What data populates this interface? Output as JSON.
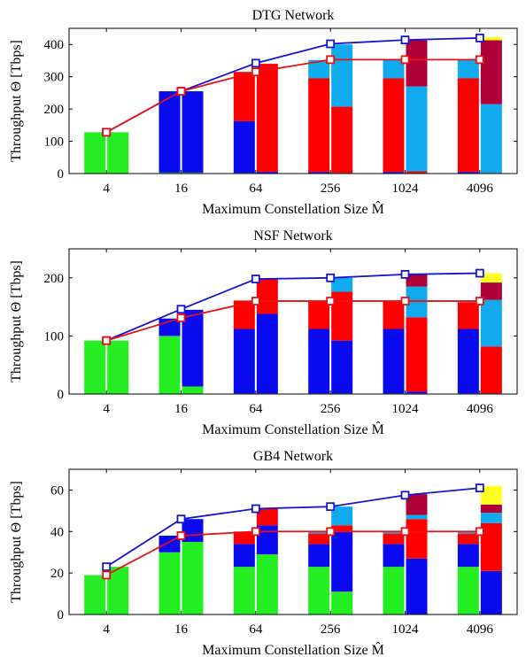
{
  "colors": {
    "green": "#22ee22",
    "blue": "#0a0aee",
    "red": "#ff0000",
    "cyan": "#10aaee",
    "maroon": "#b0003a",
    "yellow": "#ffff22",
    "line_blue": "#1414d4",
    "line_red": "#e81010"
  },
  "chart_data": [
    {
      "type": "bar",
      "title": "DTG Network",
      "xlabel": "Maximum Constellation Size M̂",
      "ylabel": "Throughput Θ [Tbps]",
      "categories": [
        "4",
        "16",
        "64",
        "256",
        "1024",
        "4096"
      ],
      "ylim": [
        0,
        450
      ],
      "yticks": [
        0,
        100,
        200,
        300,
        400
      ],
      "stack_order": [
        "green",
        "blue",
        "red",
        "cyan",
        "maroon",
        "yellow"
      ],
      "bars": [
        {
          "category": "4",
          "side": "left",
          "segments": [
            128,
            0,
            0,
            0,
            0,
            0
          ]
        },
        {
          "category": "4",
          "side": "right",
          "segments": [
            128,
            0,
            0,
            0,
            0,
            0
          ]
        },
        {
          "category": "16",
          "side": "left",
          "segments": [
            3,
            252,
            0,
            0,
            0,
            0
          ]
        },
        {
          "category": "16",
          "side": "right",
          "segments": [
            3,
            252,
            0,
            0,
            0,
            0
          ]
        },
        {
          "category": "64",
          "side": "left",
          "segments": [
            2,
            160,
            153,
            0,
            0,
            0
          ]
        },
        {
          "category": "64",
          "side": "right",
          "segments": [
            1,
            4,
            335,
            0,
            0,
            0
          ]
        },
        {
          "category": "256",
          "side": "left",
          "segments": [
            1,
            4,
            290,
            57,
            0,
            0
          ]
        },
        {
          "category": "256",
          "side": "right",
          "segments": [
            0,
            2,
            205,
            193,
            0,
            0
          ]
        },
        {
          "category": "1024",
          "side": "left",
          "segments": [
            1,
            4,
            290,
            57,
            0,
            0
          ]
        },
        {
          "category": "1024",
          "side": "right",
          "segments": [
            0,
            2,
            5,
            263,
            143,
            0
          ]
        },
        {
          "category": "4096",
          "side": "left",
          "segments": [
            1,
            4,
            290,
            57,
            0,
            0
          ]
        },
        {
          "category": "4096",
          "side": "right",
          "segments": [
            0,
            1,
            1,
            213,
            198,
            10
          ]
        }
      ],
      "series": [
        {
          "color": "line_blue",
          "values": [
            128,
            255,
            342,
            402,
            414,
            420
          ]
        },
        {
          "color": "line_red",
          "values": [
            128,
            255,
            315,
            353,
            353,
            353
          ]
        }
      ]
    },
    {
      "type": "bar",
      "title": "NSF Network",
      "xlabel": "Maximum Constellation Size M̂",
      "ylabel": "Throughput Θ [Tbps]",
      "categories": [
        "4",
        "16",
        "64",
        "256",
        "1024",
        "4096"
      ],
      "ylim": [
        0,
        250
      ],
      "yticks": [
        0,
        100,
        200
      ],
      "stack_order": [
        "green",
        "blue",
        "red",
        "cyan",
        "maroon",
        "yellow"
      ],
      "bars": [
        {
          "category": "4",
          "side": "left",
          "segments": [
            92,
            0,
            0,
            0,
            0,
            0
          ]
        },
        {
          "category": "4",
          "side": "right",
          "segments": [
            92,
            0,
            0,
            0,
            0,
            0
          ]
        },
        {
          "category": "16",
          "side": "left",
          "segments": [
            100,
            30,
            0,
            0,
            0,
            0
          ]
        },
        {
          "category": "16",
          "side": "right",
          "segments": [
            13,
            132,
            0,
            0,
            0,
            0
          ]
        },
        {
          "category": "64",
          "side": "left",
          "segments": [
            1,
            111,
            49,
            0,
            0,
            0
          ]
        },
        {
          "category": "64",
          "side": "right",
          "segments": [
            1,
            137,
            60,
            0,
            0,
            0
          ]
        },
        {
          "category": "256",
          "side": "left",
          "segments": [
            1,
            111,
            49,
            0,
            0,
            0
          ]
        },
        {
          "category": "256",
          "side": "right",
          "segments": [
            1,
            91,
            84,
            24,
            0,
            0
          ]
        },
        {
          "category": "1024",
          "side": "left",
          "segments": [
            1,
            111,
            49,
            0,
            0,
            0
          ]
        },
        {
          "category": "1024",
          "side": "right",
          "segments": [
            1,
            3,
            128,
            53,
            21,
            0
          ]
        },
        {
          "category": "4096",
          "side": "left",
          "segments": [
            1,
            111,
            46,
            3,
            0,
            0
          ]
        },
        {
          "category": "4096",
          "side": "right",
          "segments": [
            0,
            1,
            81,
            80,
            30,
            16
          ]
        }
      ],
      "series": [
        {
          "color": "line_blue",
          "values": [
            92,
            146,
            198,
            200,
            206,
            208
          ]
        },
        {
          "color": "line_red",
          "values": [
            92,
            131,
            160,
            160,
            160,
            160
          ]
        }
      ]
    },
    {
      "type": "bar",
      "title": "GB4 Network",
      "xlabel": "Maximum Constellation Size M̂",
      "ylabel": "Throughput Θ [Tbps]",
      "categories": [
        "4",
        "16",
        "64",
        "256",
        "1024",
        "4096"
      ],
      "ylim": [
        0,
        70
      ],
      "yticks": [
        0,
        20,
        40,
        60
      ],
      "stack_order": [
        "green",
        "blue",
        "red",
        "cyan",
        "maroon",
        "yellow"
      ],
      "bars": [
        {
          "category": "4",
          "side": "left",
          "segments": [
            19,
            0,
            0,
            0,
            0,
            0
          ]
        },
        {
          "category": "4",
          "side": "right",
          "segments": [
            23,
            0,
            0,
            0,
            0,
            0
          ]
        },
        {
          "category": "16",
          "side": "left",
          "segments": [
            30,
            8,
            0,
            0,
            0,
            0
          ]
        },
        {
          "category": "16",
          "side": "right",
          "segments": [
            35,
            11,
            0,
            0,
            0,
            0
          ]
        },
        {
          "category": "64",
          "side": "left",
          "segments": [
            23,
            11,
            6,
            0,
            0,
            0
          ]
        },
        {
          "category": "64",
          "side": "right",
          "segments": [
            29,
            14,
            8,
            0,
            0,
            0
          ]
        },
        {
          "category": "256",
          "side": "left",
          "segments": [
            23,
            11,
            5,
            1,
            0,
            0
          ]
        },
        {
          "category": "256",
          "side": "right",
          "segments": [
            11,
            29,
            3,
            9,
            0,
            0
          ]
        },
        {
          "category": "1024",
          "side": "left",
          "segments": [
            23,
            11,
            5,
            1,
            0,
            0
          ]
        },
        {
          "category": "1024",
          "side": "right",
          "segments": [
            0,
            27,
            19,
            2,
            10,
            0
          ]
        },
        {
          "category": "4096",
          "side": "left",
          "segments": [
            23,
            11,
            5,
            1,
            0,
            0
          ]
        },
        {
          "category": "4096",
          "side": "right",
          "segments": [
            0,
            21,
            23,
            5,
            4,
            9
          ]
        }
      ],
      "series": [
        {
          "color": "line_blue",
          "values": [
            23,
            46,
            51,
            52,
            57.5,
            61
          ]
        },
        {
          "color": "line_red",
          "values": [
            19,
            38,
            40,
            40,
            40,
            40
          ]
        }
      ]
    }
  ]
}
